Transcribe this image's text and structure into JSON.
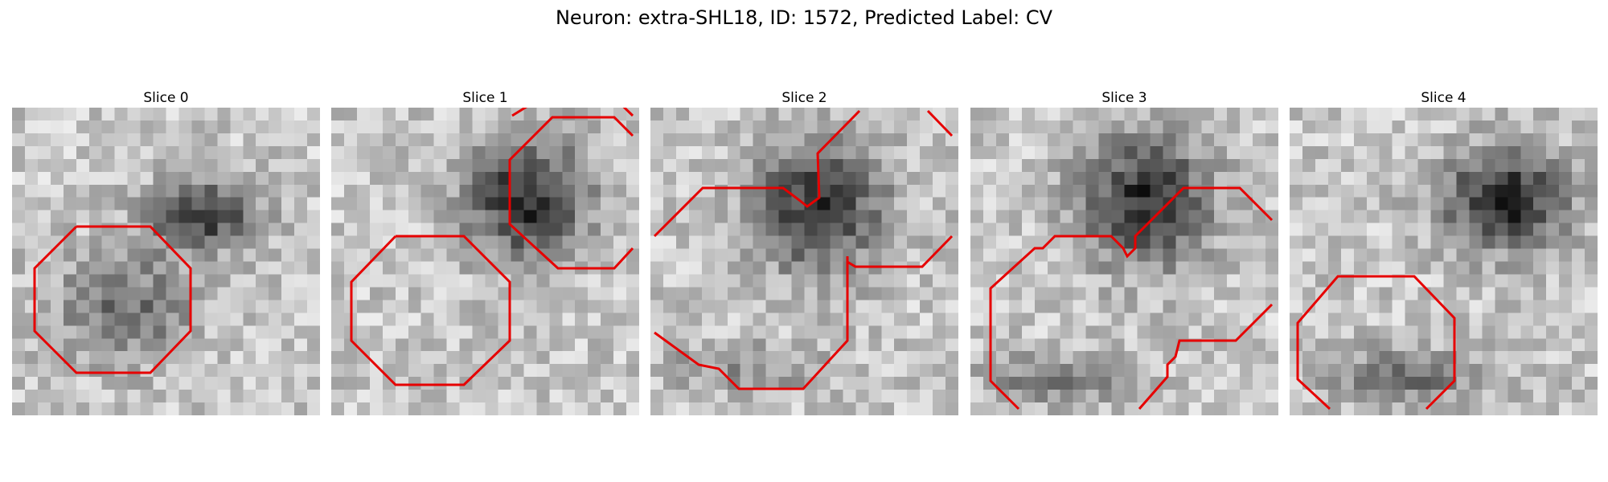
{
  "figure": {
    "suptitle": "Neuron: extra-SHL18, ID: 1572, Predicted Label: CV",
    "contour_color": "#e60000",
    "slices": [
      {
        "title": "Slice 0"
      },
      {
        "title": "Slice 1"
      },
      {
        "title": "Slice 2"
      },
      {
        "title": "Slice 3"
      },
      {
        "title": "Slice 4"
      }
    ]
  }
}
